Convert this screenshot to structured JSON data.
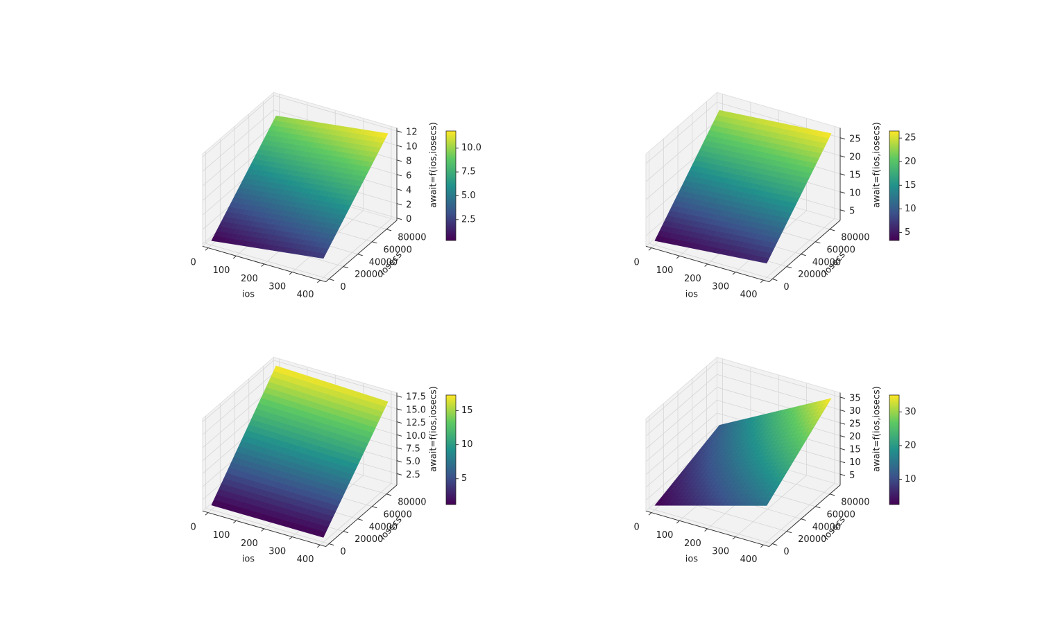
{
  "chart_data": [
    {
      "type": "surface",
      "x": [
        0,
        400
      ],
      "y": [
        0,
        90000
      ],
      "z": [
        [
          0.3,
          9.8
        ],
        [
          2.3,
          11.8
        ]
      ],
      "xlabel": "ios",
      "ylabel": "iosecs",
      "colorbar_label": "await=f(ios,iosecs)",
      "colormap": "viridis",
      "xlim": [
        -20,
        420
      ],
      "ylim": [
        -4500,
        94500
      ],
      "zlim": [
        -0.3,
        12.4
      ],
      "xticks": [
        0,
        100,
        200,
        300,
        400
      ],
      "yticks": [
        0,
        20000,
        40000,
        60000,
        80000
      ],
      "zticks": [
        0,
        2,
        4,
        6,
        8,
        10,
        12
      ],
      "colorbar_ticks": [
        2.5,
        {
          "value": 5,
          "label": "5.0"
        },
        7.5,
        {
          "value": 10,
          "label": "10.0"
        }
      ]
    },
    {
      "type": "surface",
      "x": [
        0,
        400
      ],
      "y": [
        0,
        90000
      ],
      "z": [
        [
          3.3,
          24
        ],
        [
          6,
          26.5
        ]
      ],
      "xlabel": "ios",
      "ylabel": "iosecs",
      "colorbar_label": "await=f(ios,iosecs)",
      "colormap": "viridis",
      "xlim": [
        -20,
        420
      ],
      "ylim": [
        -4500,
        94500
      ],
      "zlim": [
        2.1,
        27.7
      ],
      "xticks": [
        0,
        100,
        200,
        300,
        400
      ],
      "yticks": [
        0,
        20000,
        40000,
        60000,
        80000
      ],
      "zticks": [
        5,
        10,
        15,
        20,
        25
      ],
      "colorbar_ticks": [
        5,
        10,
        15,
        20,
        25
      ]
    },
    {
      "type": "surface",
      "x": [
        0,
        400
      ],
      "y": [
        0,
        90000
      ],
      "z": [
        [
          1.2,
          17.3
        ],
        [
          1.2,
          16.6
        ]
      ],
      "xlabel": "ios",
      "ylabel": "iosecs",
      "colorbar_label": "await=f(ios,iosecs)",
      "colormap": "viridis",
      "xlim": [
        -20,
        420
      ],
      "ylim": [
        -4500,
        94500
      ],
      "zlim": [
        0.3,
        18.1
      ],
      "xticks": [
        0,
        100,
        200,
        300,
        400
      ],
      "yticks": [
        0,
        20000,
        40000,
        60000,
        80000
      ],
      "zticks": [
        2.5,
        {
          "value": 5,
          "label": "5.0"
        },
        7.5,
        {
          "value": 10,
          "label": "10.0"
        },
        12.5,
        {
          "value": 15,
          "label": "15.0"
        },
        17.5
      ],
      "colorbar_ticks": [
        5,
        10,
        15
      ]
    },
    {
      "type": "surface",
      "x": [
        0,
        400
      ],
      "y": [
        0,
        90000
      ],
      "z": [
        [
          2.5,
          12
        ],
        [
          15,
          35
        ]
      ],
      "xlabel": "ios",
      "ylabel": "iosecs",
      "colorbar_label": "await=f(ios,iosecs)",
      "colormap": "viridis",
      "xlim": [
        -20,
        420
      ],
      "ylim": [
        -4500,
        94500
      ],
      "zlim": [
        0.8,
        36.7
      ],
      "xticks": [
        0,
        100,
        200,
        300,
        400
      ],
      "yticks": [
        0,
        20000,
        40000,
        60000,
        80000
      ],
      "zticks": [
        5,
        10,
        15,
        20,
        25,
        30,
        35
      ],
      "colorbar_ticks": [
        10,
        20,
        30
      ]
    }
  ]
}
